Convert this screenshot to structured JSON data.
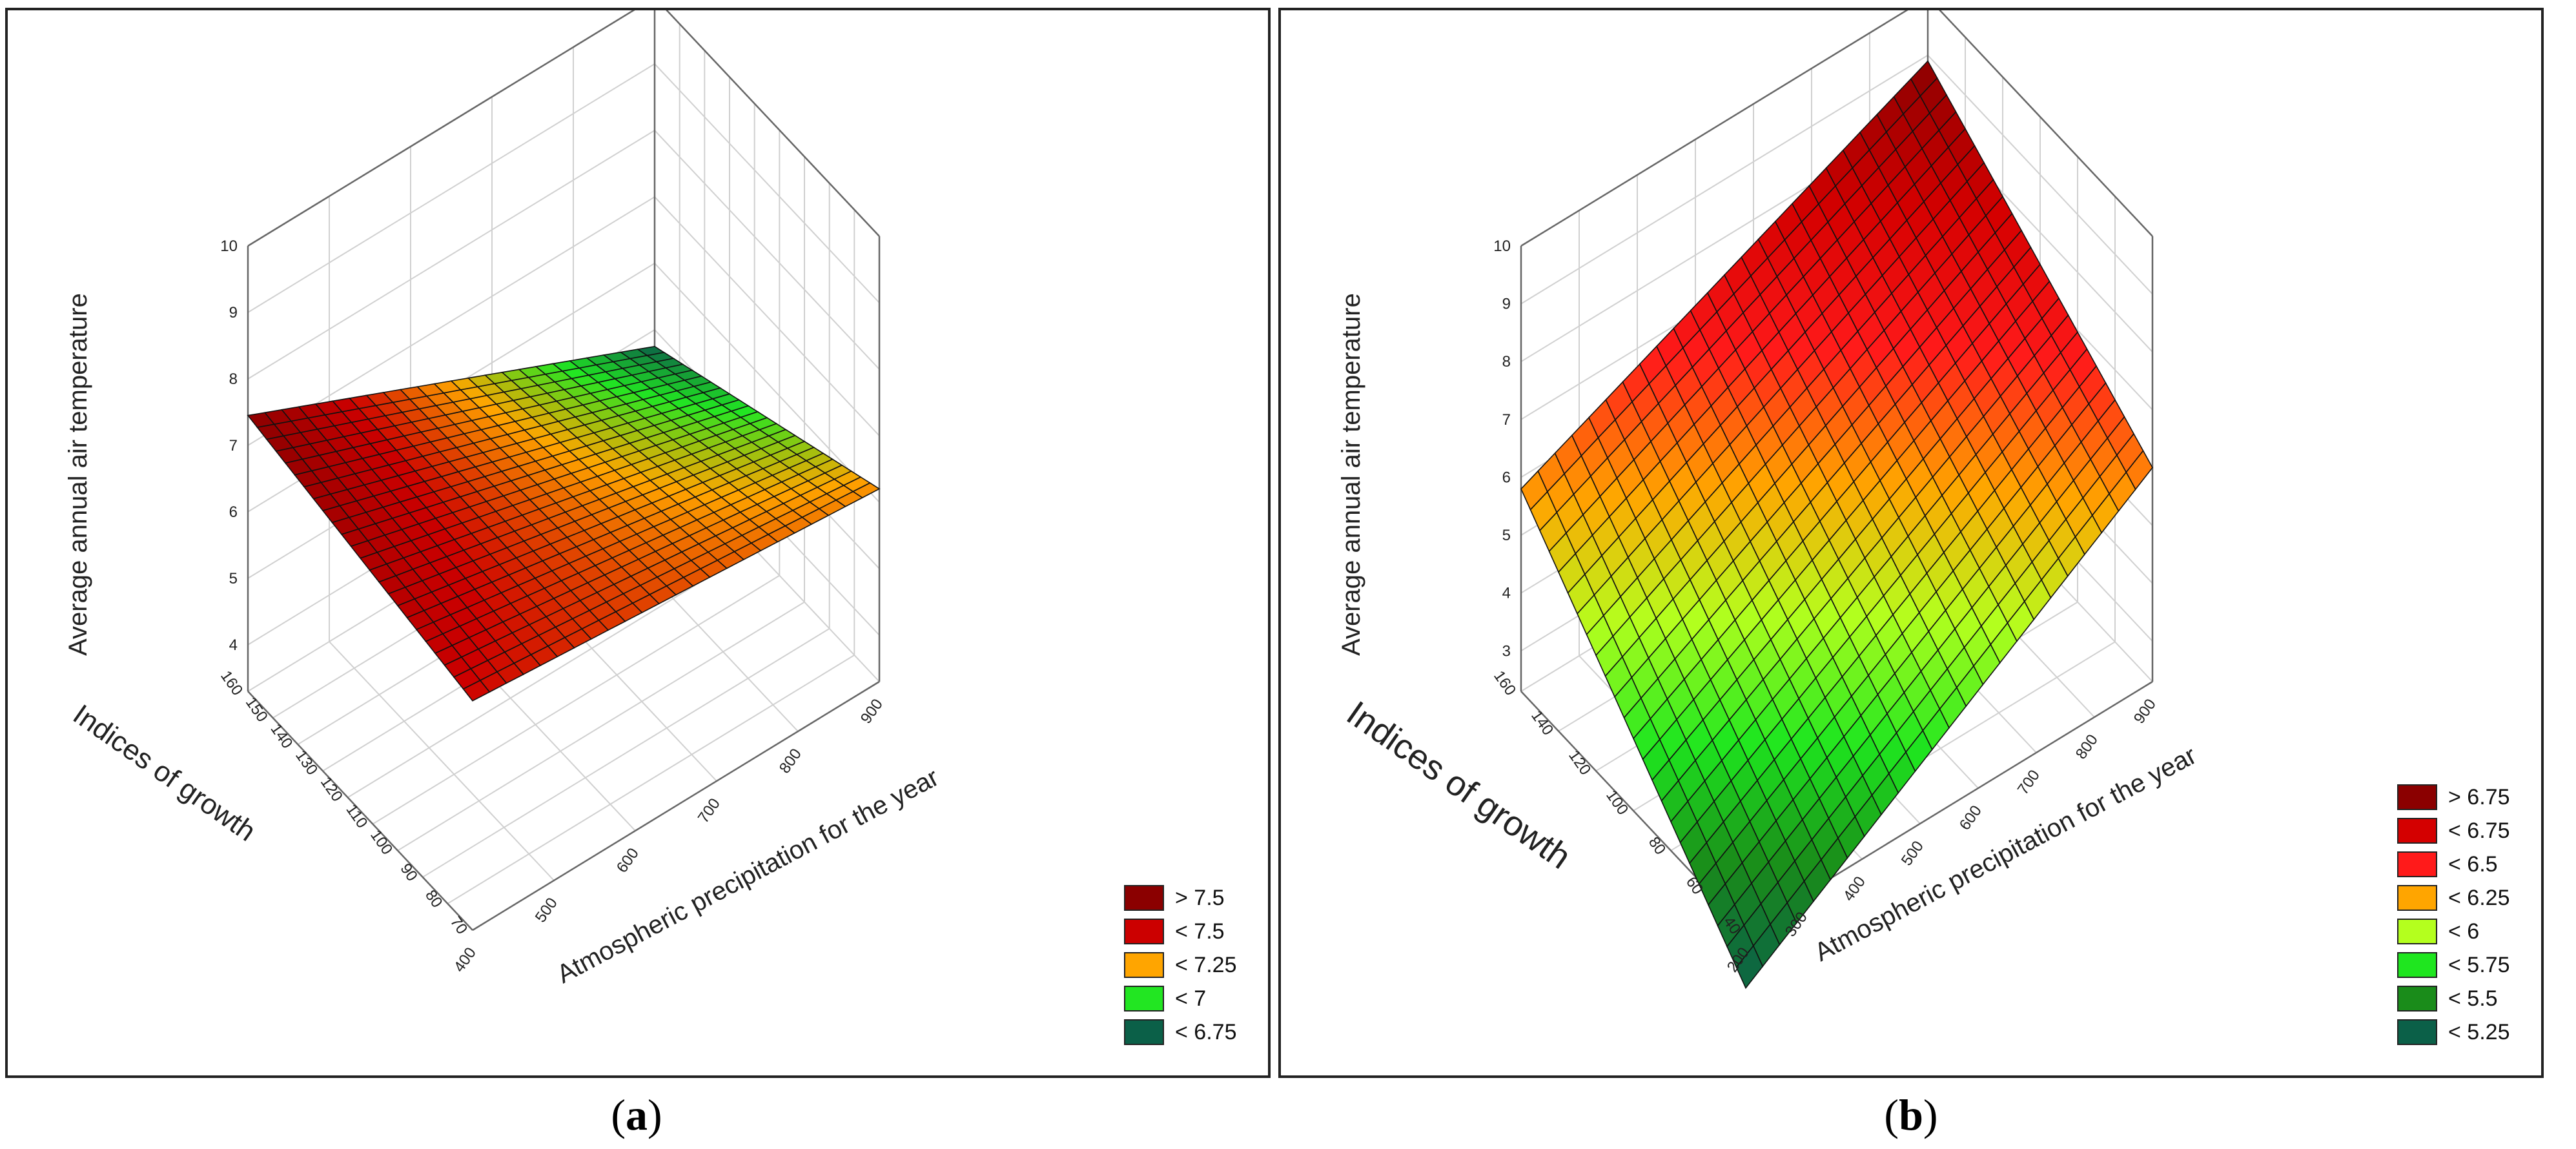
{
  "chart_data": [
    {
      "type": "surface3d",
      "panel_label": "a",
      "zlabel": "Average annual air temperature",
      "ylabel": "Indices of growth",
      "xlabel": "Atmospheric precipitation for the year",
      "z_ticks": [
        "4",
        "5",
        "6",
        "7",
        "8",
        "9",
        "10"
      ],
      "z_range": [
        3.3,
        10
      ],
      "y_ticks": [
        "70",
        "80",
        "90",
        "100",
        "110",
        "120",
        "130",
        "140",
        "150",
        "160"
      ],
      "y_range": [
        70,
        160
      ],
      "x_ticks": [
        "400",
        "500",
        "600",
        "700",
        "800",
        "900"
      ],
      "x_range": [
        400,
        900
      ],
      "surface_corners": {
        "x400_y160": 7.45,
        "x400_y70": 6.75,
        "x900_y160": 4.75,
        "x900_y70": 6.2
      },
      "legend": [
        {
          "label": "> 7.5",
          "color": "#8b0000"
        },
        {
          "label": "< 7.5",
          "color": "#cc0000"
        },
        {
          "label": "< 7.25",
          "color": "#ffa500"
        },
        {
          "label": "< 7",
          "color": "#22e622"
        },
        {
          "label": "< 6.75",
          "color": "#0b6048"
        }
      ]
    },
    {
      "type": "surface3d",
      "panel_label": "b",
      "zlabel": "Average annual air temperature",
      "ylabel": "Indices of growth",
      "xlabel": "Atmospheric precipitation for the year",
      "z_ticks": [
        "3",
        "4",
        "5",
        "6",
        "7",
        "8",
        "9",
        "10"
      ],
      "z_range": [
        2.3,
        10
      ],
      "y_ticks": [
        "40",
        "60",
        "80",
        "100",
        "120",
        "140",
        "160"
      ],
      "y_range": [
        40,
        160
      ],
      "x_ticks": [
        "200",
        "300",
        "400",
        "500",
        "600",
        "700",
        "800",
        "900"
      ],
      "x_range": [
        200,
        900
      ],
      "surface_corners": {
        "x200_y160": 5.8,
        "x200_y40": 1.3,
        "x900_y160": 8.9,
        "x900_y40": 6.0
      },
      "legend": [
        {
          "label": "> 6.75",
          "color": "#8b0000"
        },
        {
          "label": "< 6.75",
          "color": "#d40000"
        },
        {
          "label": "< 6.5",
          "color": "#ff1a1a"
        },
        {
          "label": "< 6.25",
          "color": "#ffa500"
        },
        {
          "label": "< 6",
          "color": "#b4ff1e"
        },
        {
          "label": "< 5.75",
          "color": "#1fe61f"
        },
        {
          "label": "< 5.5",
          "color": "#1a8c1a"
        },
        {
          "label": "< 5.25",
          "color": "#0b6048"
        }
      ]
    }
  ],
  "captions": {
    "a": "a",
    "b": "b"
  }
}
